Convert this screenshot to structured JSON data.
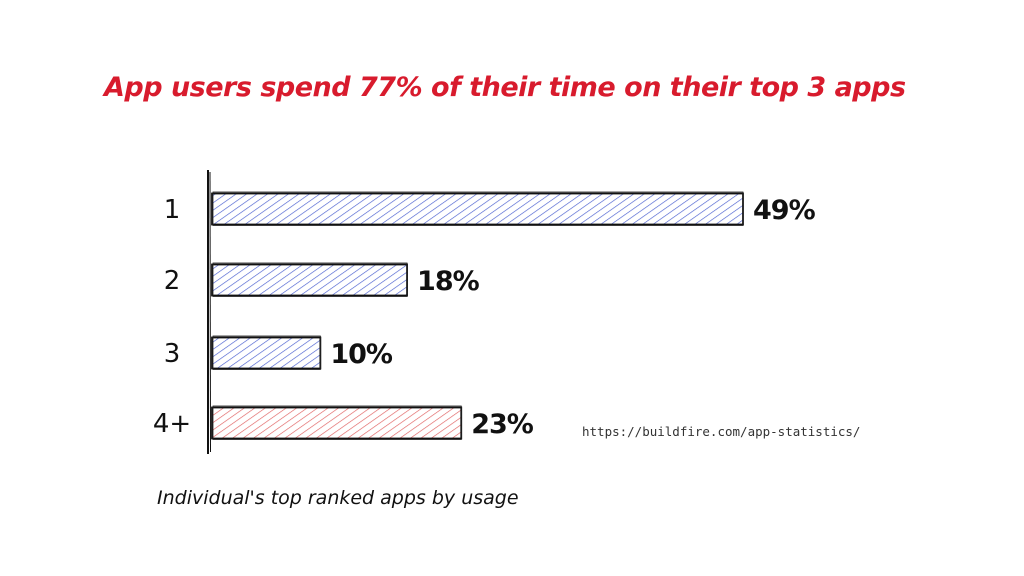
{
  "chart_data": {
    "type": "bar",
    "orientation": "horizontal",
    "title": "App users spend 77% of their time on their top 3 apps",
    "xlabel": "Individual's top ranked apps by usage",
    "ylabel": "",
    "categories": [
      "1",
      "2",
      "3",
      "4+"
    ],
    "values": [
      49,
      18,
      10,
      23
    ],
    "value_labels": [
      "49%",
      "18%",
      "10%",
      "23%"
    ],
    "bar_colors": [
      "#4a5fd0",
      "#4a5fd0",
      "#4a5fd0",
      "#e06060"
    ],
    "xlim": [
      0,
      49
    ],
    "grid": false,
    "legend": "none",
    "style": "hand-drawn hatched",
    "source": "https://buildfire.com/app-statistics/"
  },
  "colors": {
    "title": "#d81b2d",
    "bar_blue": "#4a5fd0",
    "bar_red": "#e06060",
    "ink": "#111111"
  }
}
